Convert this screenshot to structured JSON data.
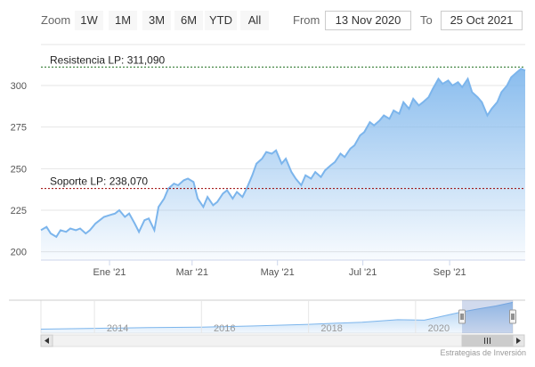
{
  "range_selector": {
    "zoom_label": "Zoom",
    "buttons": [
      "1W",
      "1M",
      "3M",
      "6M",
      "YTD",
      "All"
    ],
    "from_label": "From",
    "from_value": "13 Nov 2020",
    "to_label": "To",
    "to_value": "25 Oct 2021"
  },
  "credit": "Estrategias de Inversión",
  "colors": {
    "line": "#7cb5ec",
    "fill_top": "#7cb5ec",
    "grid": "#e6e6e6",
    "resistance": "#1a6b1a",
    "support": "#990000"
  },
  "chart_data": {
    "type": "area",
    "title": "",
    "xlabel": "",
    "ylabel": "",
    "ylim": [
      195,
      315
    ],
    "yticks": [
      200,
      225,
      250,
      275,
      300
    ],
    "xticks": [
      {
        "date": "2021-01-01",
        "label": "Ene '21"
      },
      {
        "date": "2021-03-01",
        "label": "Mar '21"
      },
      {
        "date": "2021-05-01",
        "label": "May '21"
      },
      {
        "date": "2021-07-01",
        "label": "Jul '21"
      },
      {
        "date": "2021-09-01",
        "label": "Sep '21"
      }
    ],
    "xrange": [
      "2020-11-13",
      "2021-10-25"
    ],
    "series": [
      {
        "values": [
          [
            "2020-11-13",
            213
          ],
          [
            "2020-11-17",
            215
          ],
          [
            "2020-11-20",
            211
          ],
          [
            "2020-11-24",
            209
          ],
          [
            "2020-11-27",
            213
          ],
          [
            "2020-12-01",
            212
          ],
          [
            "2020-12-04",
            214
          ],
          [
            "2020-12-08",
            213
          ],
          [
            "2020-12-11",
            214
          ],
          [
            "2020-12-15",
            211
          ],
          [
            "2020-12-18",
            213
          ],
          [
            "2020-12-22",
            217
          ],
          [
            "2020-12-28",
            221
          ],
          [
            "2021-01-01",
            222
          ],
          [
            "2021-01-05",
            223
          ],
          [
            "2021-01-08",
            225
          ],
          [
            "2021-01-12",
            221
          ],
          [
            "2021-01-15",
            223
          ],
          [
            "2021-01-19",
            217
          ],
          [
            "2021-01-22",
            212
          ],
          [
            "2021-01-26",
            219
          ],
          [
            "2021-01-29",
            220
          ],
          [
            "2021-02-02",
            213
          ],
          [
            "2021-02-05",
            227
          ],
          [
            "2021-02-09",
            232
          ],
          [
            "2021-02-12",
            238
          ],
          [
            "2021-02-16",
            241
          ],
          [
            "2021-02-19",
            240
          ],
          [
            "2021-02-23",
            243
          ],
          [
            "2021-02-26",
            244
          ],
          [
            "2021-03-02",
            242
          ],
          [
            "2021-03-05",
            232
          ],
          [
            "2021-03-09",
            227
          ],
          [
            "2021-03-12",
            233
          ],
          [
            "2021-03-16",
            228
          ],
          [
            "2021-03-19",
            230
          ],
          [
            "2021-03-23",
            235
          ],
          [
            "2021-03-26",
            237
          ],
          [
            "2021-03-30",
            232
          ],
          [
            "2021-04-02",
            236
          ],
          [
            "2021-04-06",
            233
          ],
          [
            "2021-04-09",
            238
          ],
          [
            "2021-04-13",
            246
          ],
          [
            "2021-04-16",
            253
          ],
          [
            "2021-04-20",
            256
          ],
          [
            "2021-04-23",
            260
          ],
          [
            "2021-04-27",
            259
          ],
          [
            "2021-04-30",
            261
          ],
          [
            "2021-05-04",
            253
          ],
          [
            "2021-05-07",
            256
          ],
          [
            "2021-05-11",
            248
          ],
          [
            "2021-05-14",
            244
          ],
          [
            "2021-05-18",
            240
          ],
          [
            "2021-05-21",
            246
          ],
          [
            "2021-05-25",
            244
          ],
          [
            "2021-05-28",
            248
          ],
          [
            "2021-06-01",
            245
          ],
          [
            "2021-06-04",
            249
          ],
          [
            "2021-06-08",
            252
          ],
          [
            "2021-06-11",
            254
          ],
          [
            "2021-06-15",
            259
          ],
          [
            "2021-06-18",
            257
          ],
          [
            "2021-06-22",
            262
          ],
          [
            "2021-06-25",
            264
          ],
          [
            "2021-06-29",
            270
          ],
          [
            "2021-07-02",
            272
          ],
          [
            "2021-07-06",
            278
          ],
          [
            "2021-07-09",
            276
          ],
          [
            "2021-07-13",
            279
          ],
          [
            "2021-07-16",
            282
          ],
          [
            "2021-07-20",
            280
          ],
          [
            "2021-07-23",
            285
          ],
          [
            "2021-07-27",
            283
          ],
          [
            "2021-07-30",
            290
          ],
          [
            "2021-08-03",
            286
          ],
          [
            "2021-08-06",
            292
          ],
          [
            "2021-08-10",
            288
          ],
          [
            "2021-08-13",
            290
          ],
          [
            "2021-08-17",
            293
          ],
          [
            "2021-08-20",
            298
          ],
          [
            "2021-08-24",
            304
          ],
          [
            "2021-08-27",
            301
          ],
          [
            "2021-08-31",
            303
          ],
          [
            "2021-09-03",
            300
          ],
          [
            "2021-09-07",
            302
          ],
          [
            "2021-09-10",
            299
          ],
          [
            "2021-09-14",
            304
          ],
          [
            "2021-09-17",
            296
          ],
          [
            "2021-09-21",
            293
          ],
          [
            "2021-09-24",
            290
          ],
          [
            "2021-09-28",
            282
          ],
          [
            "2021-10-01",
            286
          ],
          [
            "2021-10-05",
            290
          ],
          [
            "2021-10-08",
            296
          ],
          [
            "2021-10-12",
            300
          ],
          [
            "2021-10-15",
            305
          ],
          [
            "2021-10-19",
            308
          ],
          [
            "2021-10-22",
            310
          ],
          [
            "2021-10-25",
            309
          ]
        ]
      }
    ],
    "plot_lines": [
      {
        "label": "Resistencia LP: 311,090",
        "value": 311.09,
        "color": "#1a6b1a"
      },
      {
        "label": "Soporte LP: 238,070",
        "value": 238.07,
        "color": "#990000"
      }
    ],
    "navigator": {
      "xrange": [
        "2013-01-01",
        "2021-10-25"
      ],
      "xticks": [
        {
          "date": "2014-01-01",
          "label": "2014"
        },
        {
          "date": "2016-01-01",
          "label": "2016"
        },
        {
          "date": "2018-01-01",
          "label": "2018"
        },
        {
          "date": "2020-01-01",
          "label": "2020"
        }
      ],
      "values": [
        [
          "2013-01-01",
          40
        ],
        [
          "2014-01-01",
          48
        ],
        [
          "2015-01-01",
          55
        ],
        [
          "2016-01-01",
          60
        ],
        [
          "2017-01-01",
          72
        ],
        [
          "2018-01-01",
          88
        ],
        [
          "2019-01-01",
          110
        ],
        [
          "2019-09-01",
          135
        ],
        [
          "2020-03-01",
          130
        ],
        [
          "2020-06-01",
          160
        ],
        [
          "2020-11-13",
          213
        ],
        [
          "2021-03-01",
          242
        ],
        [
          "2021-07-01",
          272
        ],
        [
          "2021-10-25",
          309
        ]
      ],
      "selected": [
        "2020-11-13",
        "2021-10-25"
      ]
    }
  }
}
